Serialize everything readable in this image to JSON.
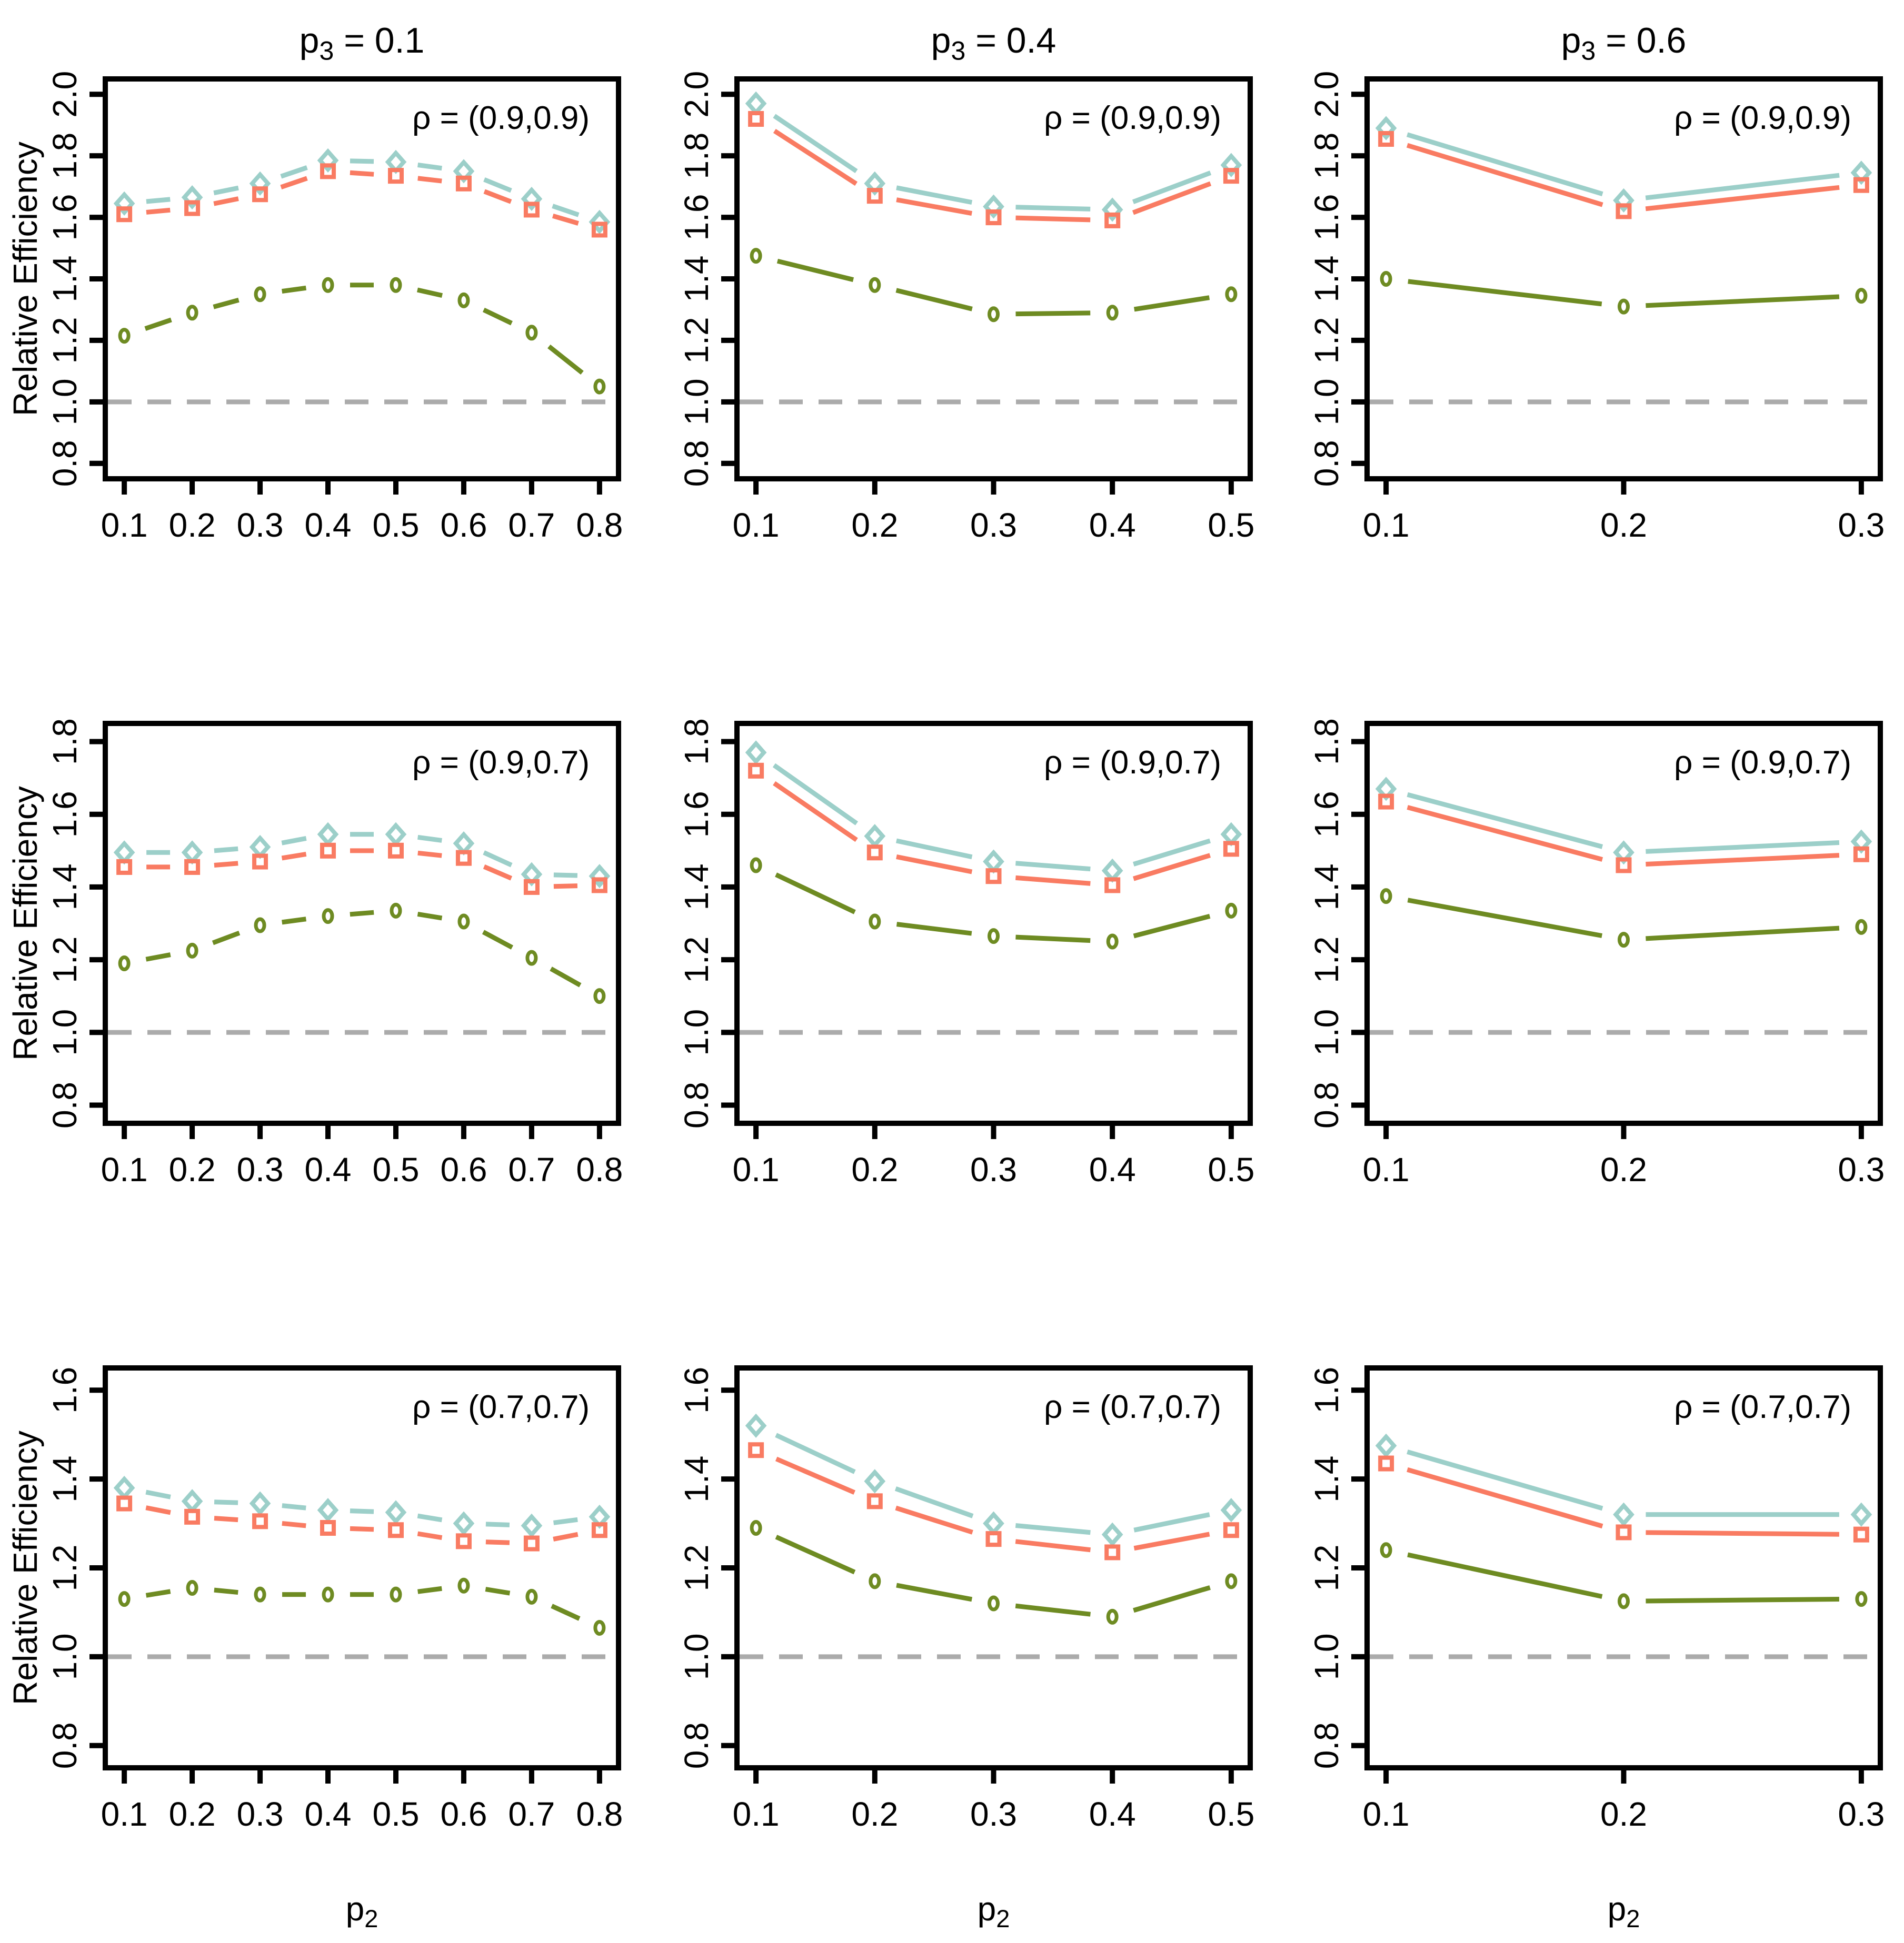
{
  "figure": {
    "description": "3x3 grid of relative efficiency line plots",
    "background": "#ffffff"
  },
  "chart_data": {
    "type": "line",
    "ylabel": "Relative Efficiency",
    "xlabel": "p2",
    "reference_line_y": 1.0,
    "reference_color": "#ABABAB",
    "annotation_color": "#708090",
    "axis_color": "#000000",
    "columns": [
      {
        "title": "p3 = 0.1",
        "x": [
          0.1,
          0.2,
          0.3,
          0.4,
          0.5,
          0.6,
          0.7,
          0.8
        ],
        "xlim": [
          0.072,
          0.828
        ]
      },
      {
        "title": "p3 = 0.4",
        "x": [
          0.1,
          0.2,
          0.3,
          0.4,
          0.5
        ],
        "xlim": [
          0.084,
          0.516
        ]
      },
      {
        "title": "p3 = 0.6",
        "x": [
          0.1,
          0.2,
          0.3
        ],
        "xlim": [
          0.092,
          0.308
        ]
      }
    ],
    "rows": [
      {
        "annotation": "ρ = (0.9,0.9)",
        "yticks": [
          0.8,
          1.0,
          1.2,
          1.4,
          1.6,
          1.8,
          2.0
        ],
        "ylim": [
          0.75,
          2.05
        ]
      },
      {
        "annotation": "ρ = (0.9,0.7)",
        "yticks": [
          0.8,
          1.0,
          1.2,
          1.4,
          1.6,
          1.8
        ],
        "ylim": [
          0.75,
          1.85
        ]
      },
      {
        "annotation": "ρ = (0.7,0.7)",
        "yticks": [
          0.8,
          1.0,
          1.2,
          1.4,
          1.6
        ],
        "ylim": [
          0.75,
          1.65
        ]
      }
    ],
    "series": [
      {
        "id": "diamond",
        "marker": "diamond",
        "color": "#9CCFC9"
      },
      {
        "id": "square",
        "marker": "square",
        "color": "#F97B62"
      },
      {
        "id": "circle",
        "marker": "circle",
        "color": "#6E8B22"
      }
    ],
    "plots": [
      [
        {
          "diamond": [
            1.645,
            1.665,
            1.71,
            1.785,
            1.78,
            1.75,
            1.66,
            1.585
          ],
          "square": [
            1.61,
            1.63,
            1.675,
            1.75,
            1.735,
            1.71,
            1.625,
            1.56
          ],
          "circle": [
            1.215,
            1.29,
            1.35,
            1.38,
            1.38,
            1.33,
            1.225,
            1.05
          ]
        },
        {
          "diamond": [
            1.97,
            1.71,
            1.635,
            1.625,
            1.77
          ],
          "square": [
            1.92,
            1.67,
            1.6,
            1.59,
            1.735
          ],
          "circle": [
            1.475,
            1.38,
            1.285,
            1.29,
            1.35
          ]
        },
        {
          "diamond": [
            1.89,
            1.655,
            1.745
          ],
          "square": [
            1.855,
            1.62,
            1.705
          ],
          "circle": [
            1.4,
            1.31,
            1.345
          ]
        }
      ],
      [
        {
          "diamond": [
            1.495,
            1.495,
            1.51,
            1.545,
            1.545,
            1.52,
            1.435,
            1.43
          ],
          "square": [
            1.455,
            1.455,
            1.47,
            1.5,
            1.5,
            1.48,
            1.4,
            1.405
          ],
          "circle": [
            1.19,
            1.225,
            1.295,
            1.32,
            1.335,
            1.305,
            1.205,
            1.1
          ]
        },
        {
          "diamond": [
            1.77,
            1.54,
            1.47,
            1.445,
            1.545
          ],
          "square": [
            1.72,
            1.495,
            1.43,
            1.405,
            1.505
          ],
          "circle": [
            1.46,
            1.305,
            1.265,
            1.25,
            1.335
          ]
        },
        {
          "diamond": [
            1.67,
            1.495,
            1.525
          ],
          "square": [
            1.635,
            1.46,
            1.49
          ],
          "circle": [
            1.375,
            1.255,
            1.29
          ]
        }
      ],
      [
        {
          "diamond": [
            1.38,
            1.35,
            1.345,
            1.33,
            1.325,
            1.3,
            1.295,
            1.315
          ],
          "square": [
            1.345,
            1.315,
            1.305,
            1.29,
            1.285,
            1.26,
            1.255,
            1.285
          ],
          "circle": [
            1.13,
            1.155,
            1.14,
            1.14,
            1.14,
            1.16,
            1.135,
            1.065
          ]
        },
        {
          "diamond": [
            1.52,
            1.395,
            1.3,
            1.275,
            1.33
          ],
          "square": [
            1.465,
            1.35,
            1.265,
            1.235,
            1.285
          ],
          "circle": [
            1.29,
            1.17,
            1.12,
            1.09,
            1.17
          ]
        },
        {
          "diamond": [
            1.475,
            1.32,
            1.32
          ],
          "square": [
            1.435,
            1.28,
            1.275
          ],
          "circle": [
            1.24,
            1.125,
            1.13
          ]
        }
      ]
    ]
  }
}
